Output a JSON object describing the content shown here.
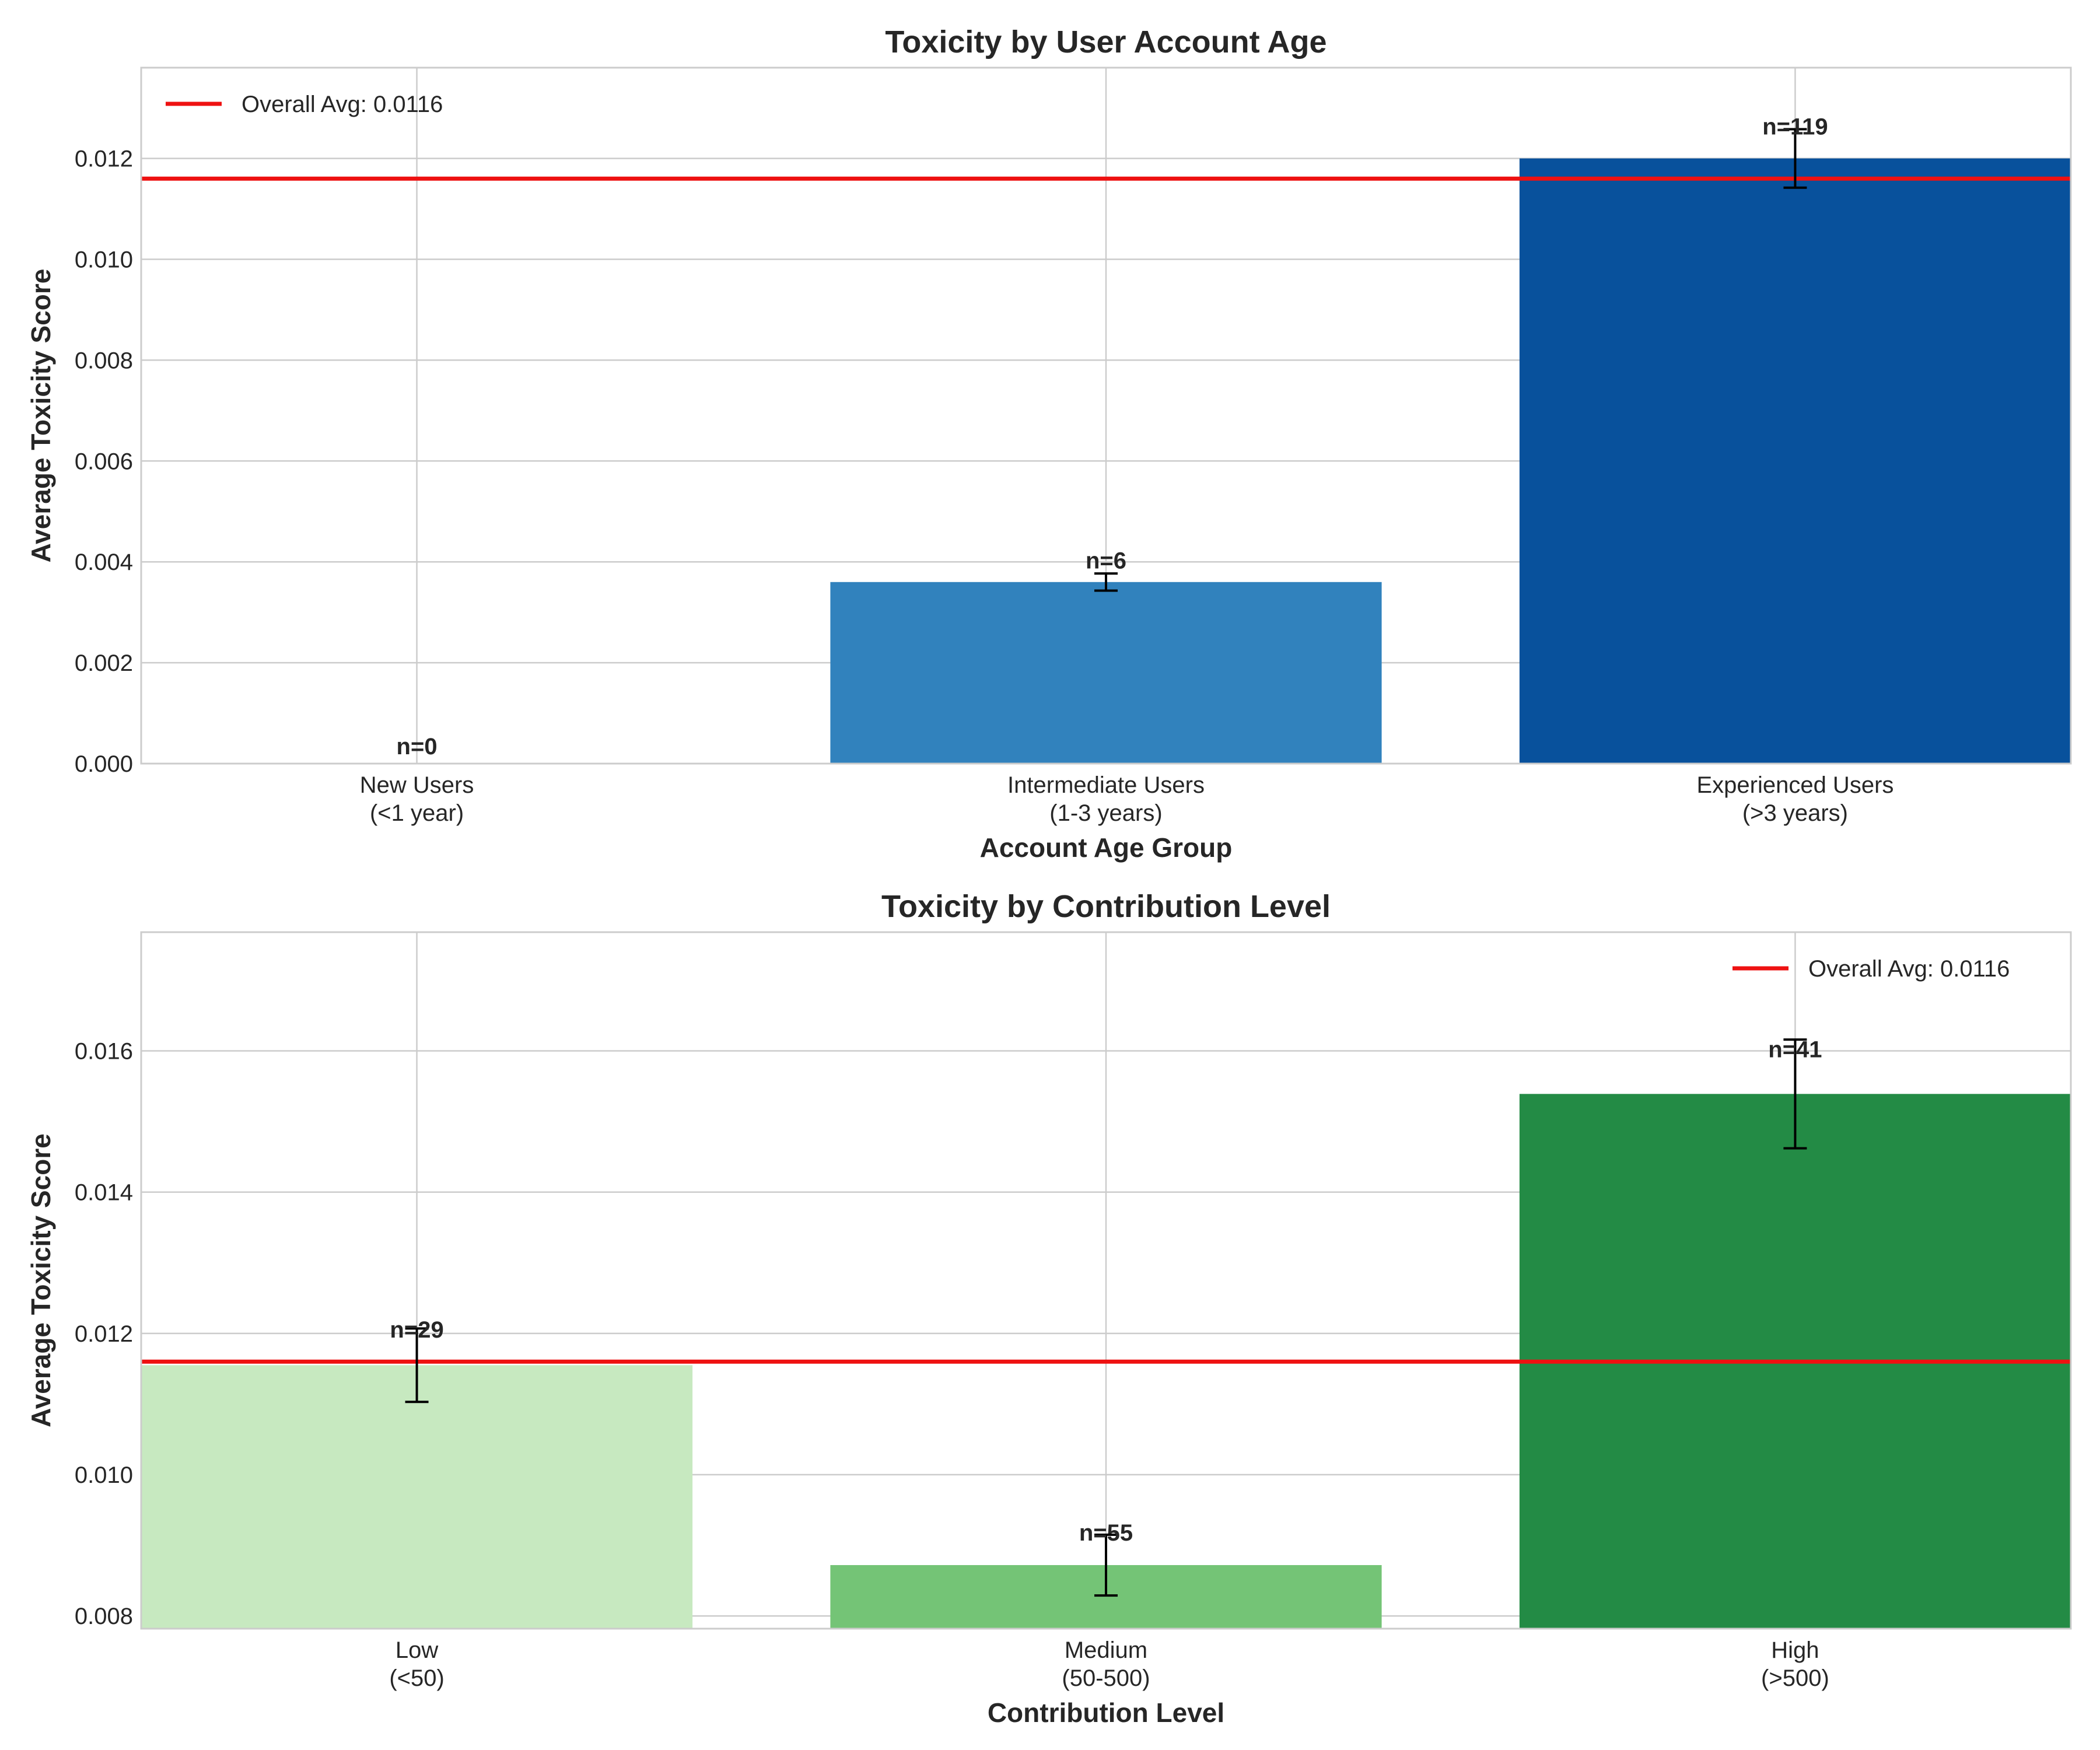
{
  "chart_data": [
    {
      "type": "bar",
      "title": "Toxicity by User Account Age",
      "xlabel": "Account Age Group",
      "ylabel": "Average Toxicity Score",
      "categories": [
        [
          "New Users",
          "(<1 year)"
        ],
        [
          "Intermediate Users",
          "(1-3 years)"
        ],
        [
          "Experienced Users",
          "(>3 years)"
        ]
      ],
      "values": [
        0.0,
        0.0036,
        0.012
      ],
      "errors": [
        0.0,
        0.00017,
        0.00058
      ],
      "bar_labels": [
        "n=0",
        "n=6",
        "n=119"
      ],
      "colors": [
        "#c6dbef",
        "#3182bd",
        "#08519c"
      ],
      "ylim": [
        0,
        0.0138
      ],
      "yticks": [
        0.0,
        0.002,
        0.004,
        0.006,
        0.008,
        0.01,
        0.012
      ],
      "ytick_labels": [
        "0.000",
        "0.002",
        "0.004",
        "0.006",
        "0.008",
        "0.010",
        "0.012"
      ],
      "reference_line": {
        "value": 0.0116,
        "label": "Overall Avg: 0.0116",
        "color": "#ee1111"
      },
      "legend_position": "upper left",
      "grid": true
    },
    {
      "type": "bar",
      "title": "Toxicity by Contribution Level",
      "xlabel": "Contribution Level",
      "ylabel": "Average Toxicity Score",
      "categories": [
        [
          "Low",
          "(<50)"
        ],
        [
          "Medium",
          "(50-500)"
        ],
        [
          "High",
          "(>500)"
        ]
      ],
      "values": [
        0.01155,
        0.00872,
        0.01539
      ],
      "errors": [
        0.00052,
        0.00043,
        0.00077
      ],
      "bar_labels": [
        "n=29",
        "n=55",
        "n=41"
      ],
      "colors": [
        "#c7e9c0",
        "#74c476",
        "#238b45"
      ],
      "ylim": [
        0.00782,
        0.01768
      ],
      "yticks": [
        0.008,
        0.01,
        0.012,
        0.014,
        0.016
      ],
      "ytick_labels": [
        "0.008",
        "0.010",
        "0.012",
        "0.014",
        "0.016"
      ],
      "reference_line": {
        "value": 0.0116,
        "label": "Overall Avg: 0.0116",
        "color": "#ee1111"
      },
      "legend_position": "upper right",
      "grid": true
    }
  ]
}
